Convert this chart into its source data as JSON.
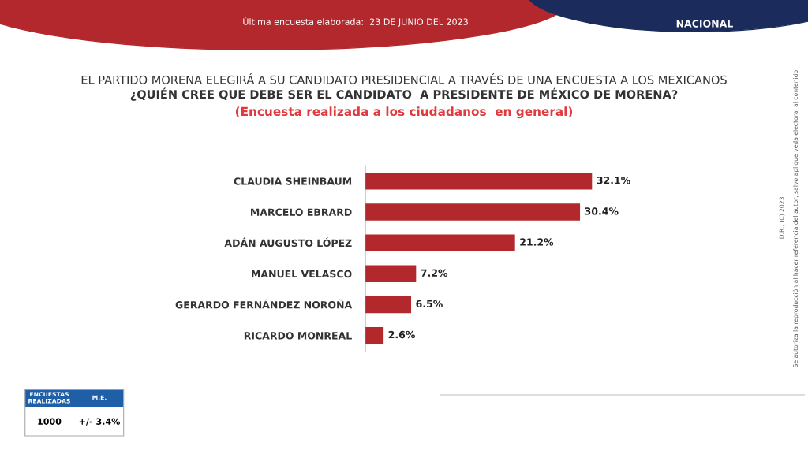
{
  "chart_data": {
    "type": "bar",
    "orientation": "horizontal",
    "title": "EL PARTIDO MORENA ELEGIRÁ A SU CANDIDATO PRESIDENCIAL A TRAVÉS DE UNA ENCUESTA A LOS MEXICANOS",
    "subtitle": "¿QUIÉN CREE QUE DEBE SER EL CANDIDATO  A PRESIDENTE DE MÉXICO DE MORENA?",
    "categories": [
      "CLAUDIA SHEINBAUM",
      "MARCELO EBRARD",
      "ADÁN AUGUSTO LÓPEZ",
      "MANUEL VELASCO",
      "GERARDO FERNÁNDEZ NOROÑA",
      "RICARDO MONREAL"
    ],
    "values": [
      32.1,
      30.4,
      21.2,
      7.2,
      6.5,
      2.6
    ],
    "value_labels": [
      "32.1%",
      "30.4%",
      "21.2%",
      "7.2%",
      "6.5%",
      "2.6%"
    ],
    "color": "#b3282d",
    "grid": false,
    "legend": false,
    "annotations": [
      "(Encuesta realizada a los ciudadanos  en general)",
      "Última encuesta elaborada:  23 DE JUNIO DEL 2023",
      "NACIONAL",
      "ENCUESTAS\nREALIZADAS",
      "M.E.",
      "1000",
      "+/- 3.4%",
      "D.R., (C) 2023",
      "Se autoriza la reproducción al hacer referencia del autor, salvo aplique veda electoral al contenido."
    ]
  }
}
